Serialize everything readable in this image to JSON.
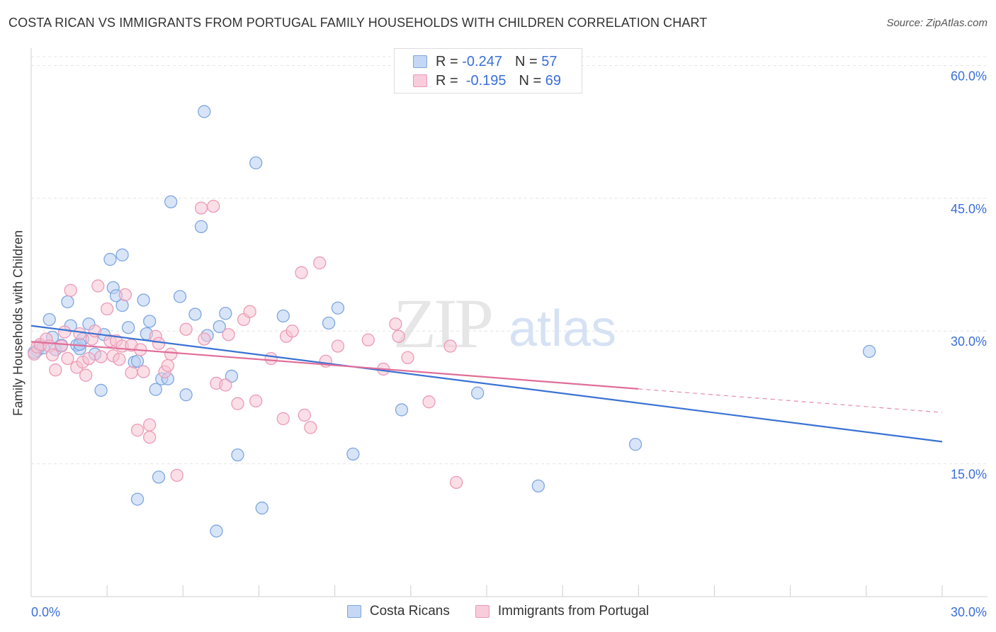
{
  "header": {
    "title": "COSTA RICAN VS IMMIGRANTS FROM PORTUGAL FAMILY HOUSEHOLDS WITH CHILDREN CORRELATION CHART",
    "source": "Source: ZipAtlas.com"
  },
  "legend": {
    "r_label": "R =",
    "n_label": "N =",
    "series": [
      {
        "r": "-0.247",
        "n": "57"
      },
      {
        "r": "-0.195",
        "n": "69"
      }
    ]
  },
  "watermark": {
    "zip": "ZIP",
    "atlas": "atlas"
  },
  "colors": {
    "blue_fill": "#b8d0f2",
    "blue_stroke": "#7fa6e0",
    "blue_line": "#3a72d2",
    "pink_fill": "#f6c5d4",
    "pink_stroke": "#ec9ab6",
    "pink_line": "#e06e98",
    "axis_text": "#3a6fd8"
  },
  "chart_data": {
    "type": "scatter",
    "title": "COSTA RICAN VS IMMIGRANTS FROM PORTUGAL FAMILY HOUSEHOLDS WITH CHILDREN CORRELATION CHART",
    "xlabel": "",
    "ylabel": "Family Households with Children",
    "xlim": [
      0,
      30
    ],
    "ylim": [
      0,
      61
    ],
    "x_tick_labels": [
      "0.0%",
      "30.0%"
    ],
    "y_ticks": [
      15,
      30,
      45,
      60
    ],
    "y_tick_labels": [
      "15.0%",
      "30.0%",
      "45.0%",
      "60.0%"
    ],
    "grid": true,
    "legend_position": "top-center",
    "series": [
      {
        "name": "Costa Ricans",
        "r": -0.247,
        "n": 57,
        "trend": {
          "x0": 0,
          "y0": 30.6,
          "x1": 30,
          "y1": 17.5,
          "solid_until": 30
        },
        "points": [
          [
            0.2,
            27.8
          ],
          [
            0.3,
            28.3
          ],
          [
            0.4,
            28.1
          ],
          [
            0.6,
            31.3
          ],
          [
            0.7,
            29.3
          ],
          [
            0.8,
            27.9
          ],
          [
            1.0,
            28.4
          ],
          [
            1.2,
            33.3
          ],
          [
            1.3,
            30.6
          ],
          [
            1.5,
            28.4
          ],
          [
            1.6,
            28.0
          ],
          [
            1.7,
            29.1
          ],
          [
            1.9,
            30.8
          ],
          [
            2.1,
            27.4
          ],
          [
            2.3,
            23.3
          ],
          [
            2.4,
            29.6
          ],
          [
            2.6,
            38.1
          ],
          [
            2.7,
            34.9
          ],
          [
            2.8,
            34.0
          ],
          [
            3.0,
            32.9
          ],
          [
            3.0,
            38.6
          ],
          [
            3.2,
            30.4
          ],
          [
            3.4,
            26.5
          ],
          [
            3.5,
            26.6
          ],
          [
            3.7,
            33.5
          ],
          [
            3.8,
            29.7
          ],
          [
            3.9,
            31.1
          ],
          [
            4.1,
            23.4
          ],
          [
            4.2,
            13.5
          ],
          [
            4.3,
            24.6
          ],
          [
            4.5,
            24.6
          ],
          [
            4.6,
            44.6
          ],
          [
            4.9,
            33.9
          ],
          [
            5.1,
            22.8
          ],
          [
            5.4,
            31.9
          ],
          [
            5.6,
            41.8
          ],
          [
            5.7,
            54.8
          ],
          [
            5.8,
            29.5
          ],
          [
            6.1,
            7.4
          ],
          [
            6.2,
            30.5
          ],
          [
            6.4,
            32.0
          ],
          [
            6.6,
            24.9
          ],
          [
            6.8,
            16.0
          ],
          [
            7.4,
            49.0
          ],
          [
            7.6,
            10.0
          ],
          [
            8.3,
            31.7
          ],
          [
            9.8,
            30.9
          ],
          [
            10.1,
            32.6
          ],
          [
            10.6,
            16.1
          ],
          [
            12.2,
            21.1
          ],
          [
            14.7,
            23.0
          ],
          [
            16.7,
            12.5
          ],
          [
            19.9,
            17.2
          ],
          [
            27.6,
            27.7
          ],
          [
            3.5,
            11.0
          ],
          [
            1.6,
            28.5
          ],
          [
            0.1,
            27.6
          ]
        ]
      },
      {
        "name": "Immigrants from Portugal",
        "r": -0.195,
        "n": 69,
        "trend": {
          "x0": 0,
          "y0": 28.8,
          "x1": 30,
          "y1": 20.8,
          "solid_until": 20
        },
        "points": [
          [
            0.1,
            27.4
          ],
          [
            0.2,
            28.2
          ],
          [
            0.3,
            28.5
          ],
          [
            0.5,
            29.1
          ],
          [
            0.6,
            28.3
          ],
          [
            0.7,
            27.3
          ],
          [
            0.8,
            25.6
          ],
          [
            1.0,
            28.3
          ],
          [
            1.1,
            29.9
          ],
          [
            1.2,
            26.9
          ],
          [
            1.3,
            34.6
          ],
          [
            1.5,
            25.9
          ],
          [
            1.6,
            29.7
          ],
          [
            1.7,
            26.5
          ],
          [
            1.8,
            25.0
          ],
          [
            1.9,
            26.9
          ],
          [
            2.0,
            29.1
          ],
          [
            2.1,
            30.0
          ],
          [
            2.2,
            35.1
          ],
          [
            2.3,
            27.1
          ],
          [
            2.5,
            32.5
          ],
          [
            2.6,
            28.9
          ],
          [
            2.7,
            27.2
          ],
          [
            2.8,
            28.9
          ],
          [
            2.9,
            26.8
          ],
          [
            3.0,
            28.3
          ],
          [
            3.1,
            34.1
          ],
          [
            3.3,
            28.4
          ],
          [
            3.3,
            25.3
          ],
          [
            3.5,
            18.8
          ],
          [
            3.6,
            27.9
          ],
          [
            3.7,
            25.4
          ],
          [
            3.9,
            19.4
          ],
          [
            3.9,
            18.0
          ],
          [
            4.1,
            29.4
          ],
          [
            4.2,
            28.6
          ],
          [
            4.4,
            25.4
          ],
          [
            4.5,
            26.1
          ],
          [
            4.6,
            27.4
          ],
          [
            4.8,
            13.7
          ],
          [
            5.1,
            30.2
          ],
          [
            5.6,
            43.9
          ],
          [
            5.7,
            29.1
          ],
          [
            6.0,
            44.1
          ],
          [
            6.1,
            24.1
          ],
          [
            6.4,
            23.9
          ],
          [
            6.5,
            29.6
          ],
          [
            6.8,
            21.8
          ],
          [
            7.0,
            31.3
          ],
          [
            7.2,
            32.2
          ],
          [
            7.4,
            22.1
          ],
          [
            7.9,
            26.9
          ],
          [
            8.3,
            20.1
          ],
          [
            8.4,
            29.4
          ],
          [
            8.6,
            30.0
          ],
          [
            8.9,
            36.6
          ],
          [
            9.0,
            20.5
          ],
          [
            9.2,
            19.1
          ],
          [
            9.5,
            37.7
          ],
          [
            9.7,
            26.6
          ],
          [
            10.1,
            28.3
          ],
          [
            11.1,
            29.0
          ],
          [
            11.6,
            25.7
          ],
          [
            12.0,
            30.8
          ],
          [
            12.1,
            29.4
          ],
          [
            12.4,
            27.0
          ],
          [
            13.1,
            22.0
          ],
          [
            13.8,
            28.3
          ],
          [
            14.0,
            12.9
          ]
        ]
      }
    ]
  },
  "bottom_legend": [
    "Costa Ricans",
    "Immigrants from Portugal"
  ]
}
